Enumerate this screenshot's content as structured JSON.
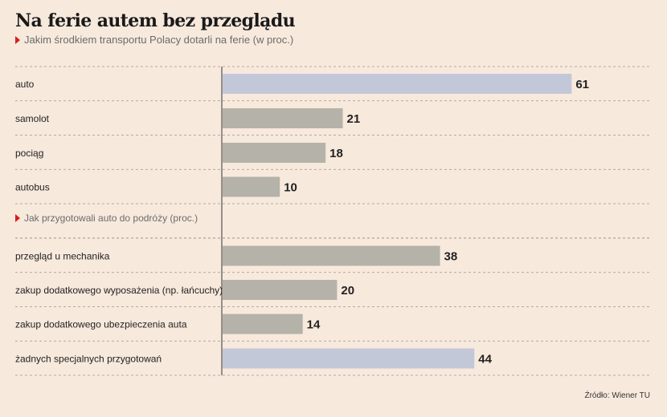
{
  "title": "Na ferie autem bez przeglądu",
  "subtitle": "Jakim środkiem transportu Polacy dotarli na ferie (w proc.)",
  "source": "Źródło: Wiener TU",
  "colors": {
    "background": "#f8e9dd",
    "highlight_bar": "#c3c8d8",
    "default_bar": "#b5b2a9",
    "marker": "#d6201e"
  },
  "chart_data": [
    {
      "type": "bar",
      "orientation": "horizontal",
      "title": "Jakim środkiem transportu Polacy dotarli na ferie (w proc.)",
      "categories": [
        "auto",
        "samolot",
        "pociąg",
        "autobus"
      ],
      "values": [
        61,
        21,
        18,
        10
      ],
      "highlighted": [
        "auto"
      ],
      "data_labels": true,
      "grid": "dashed row separators"
    },
    {
      "type": "bar",
      "orientation": "horizontal",
      "title": "Jak przygotowali auto do podróży (proc.)",
      "categories": [
        "przegląd u mechanika",
        "zakup dodatkowego wyposażenia (np. łańcuchy)",
        "zakup dodatkowego ubezpieczenia auta",
        "żadnych specjalnych przygotowań"
      ],
      "values": [
        38,
        20,
        14,
        44
      ],
      "highlighted": [
        "żadnych specjalnych przygotowań"
      ],
      "data_labels": true,
      "grid": "dashed row separators"
    }
  ]
}
